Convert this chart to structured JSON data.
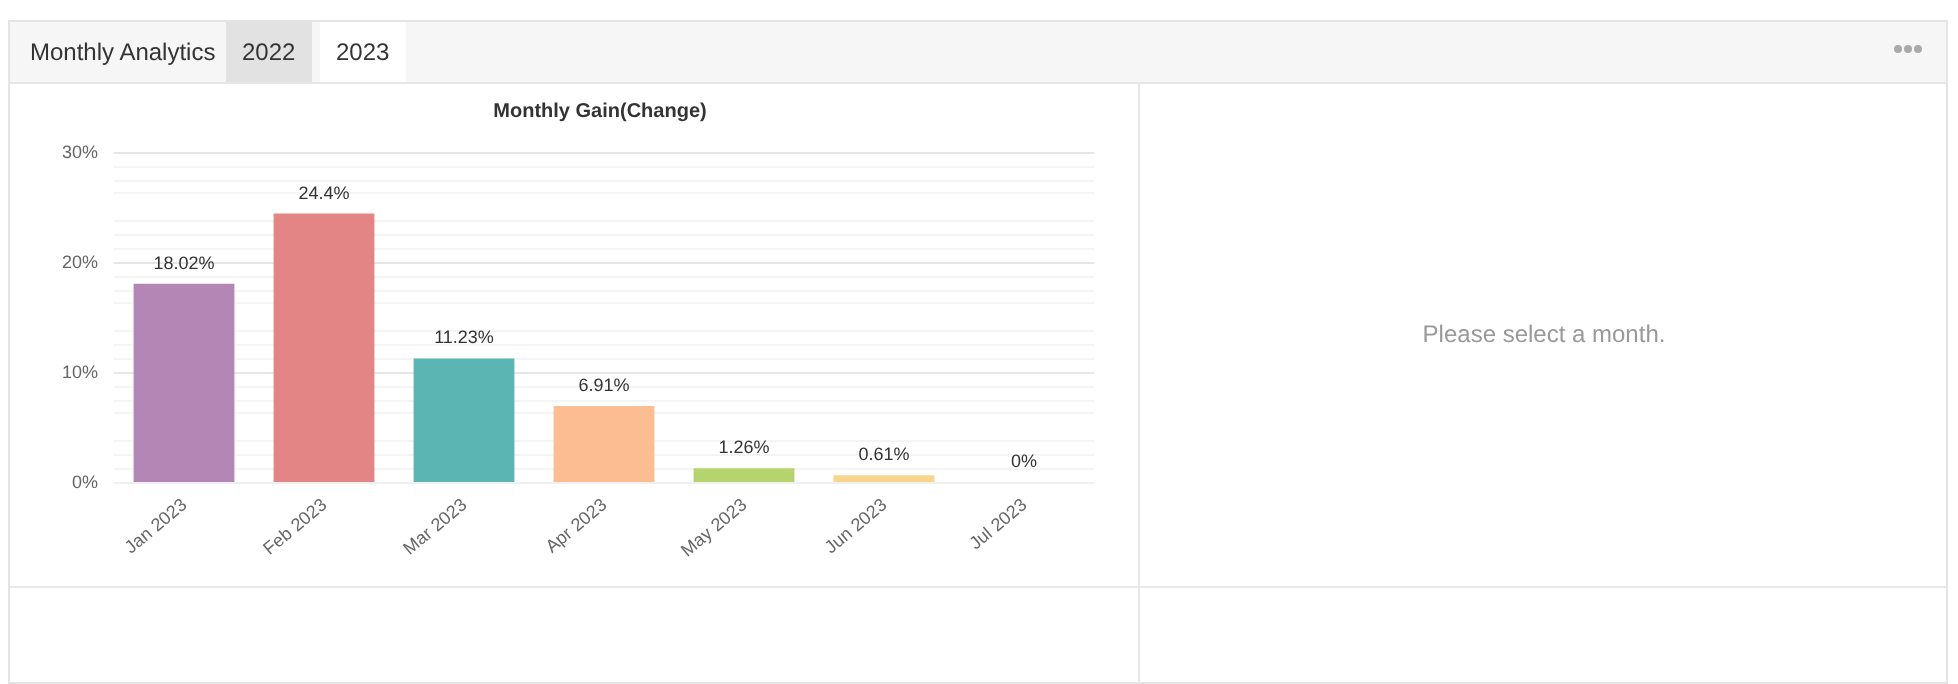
{
  "chart_data": {
    "type": "bar",
    "title": "Monthly Gain(Change)",
    "categories": [
      "Jan 2023",
      "Feb 2023",
      "Mar 2023",
      "Apr 2023",
      "May 2023",
      "Jun 2023",
      "Jul 2023"
    ],
    "values": [
      18.02,
      24.4,
      11.23,
      6.91,
      1.26,
      0.61,
      0
    ],
    "colors": [
      "#b386b5",
      "#e38584",
      "#5bb5b3",
      "#fdbd92",
      "#b5d46e",
      "#f7d58c",
      "#8fc1e3"
    ],
    "value_labels": [
      "18.02%",
      "24.4%",
      "11.23%",
      "6.91%",
      "1.26%",
      "0.61%",
      "0%"
    ],
    "ylim": [
      0,
      30
    ],
    "yticks": [
      {
        "value": 0,
        "label": "0%"
      },
      {
        "value": 10,
        "label": "10%"
      },
      {
        "value": 20,
        "label": "20%"
      },
      {
        "value": 30,
        "label": "30%"
      }
    ],
    "grid": "y",
    "annotations": [
      "Monthly Analytics",
      "2022",
      "2023",
      "Please select a month."
    ]
  }
}
